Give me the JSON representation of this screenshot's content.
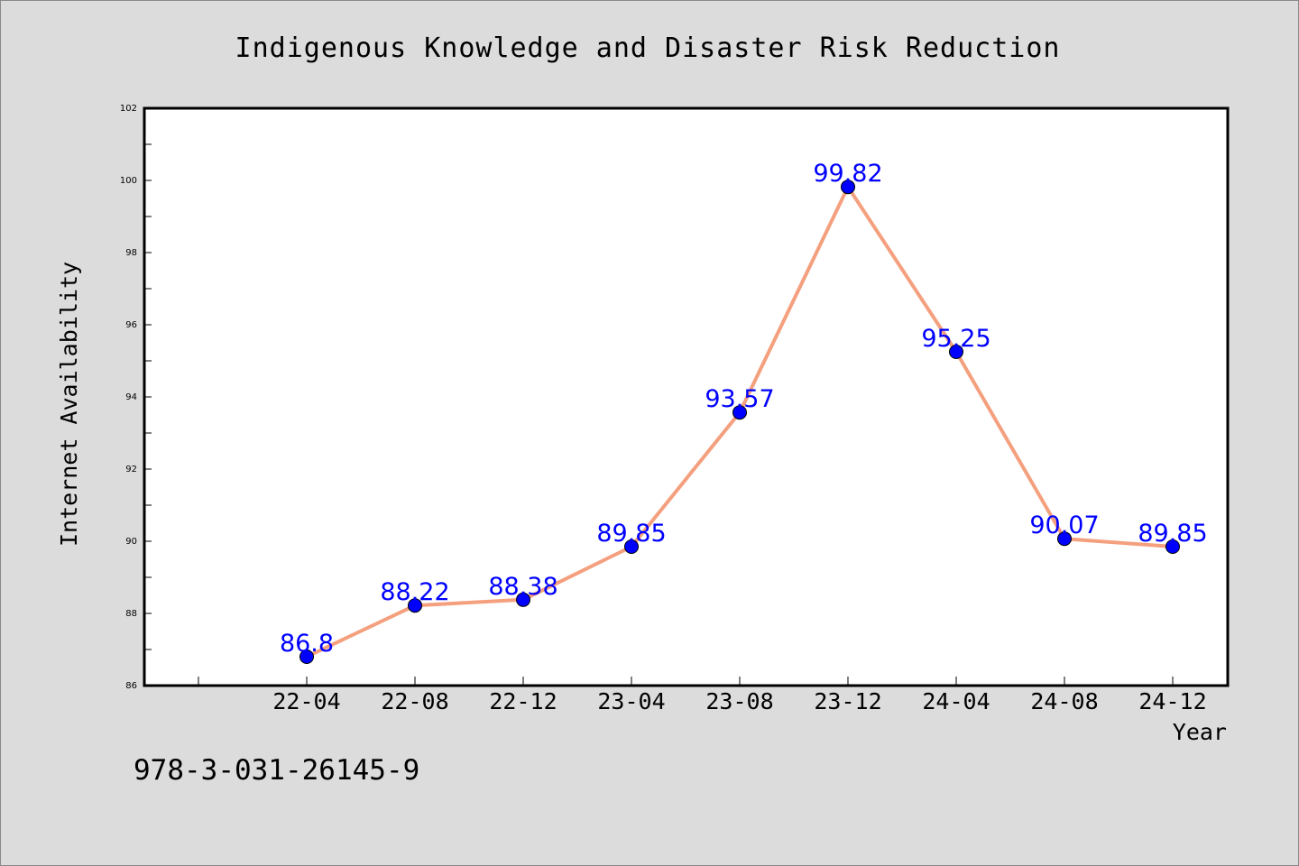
{
  "chart_data": {
    "type": "line",
    "title": "Indigenous Knowledge and Disaster Risk Reduction",
    "xlabel": "Year",
    "ylabel": "Internet Availability",
    "categories": [
      "22-04",
      "22-08",
      "22-12",
      "23-04",
      "23-08",
      "23-12",
      "24-04",
      "24-08",
      "24-12"
    ],
    "series": [
      {
        "values": [
          86.8,
          88.22,
          88.38,
          89.85,
          93.57,
          99.82,
          95.25,
          90.07,
          89.85
        ],
        "labels": [
          "86.8",
          "88.22",
          "88.38",
          "89.85",
          "93.57",
          "99.82",
          "95.25",
          "90.07",
          "89.85"
        ]
      }
    ],
    "ylim": [
      86,
      102
    ],
    "yticks": [
      "86",
      "88",
      "90",
      "92",
      "94",
      "96",
      "98",
      "100",
      "102"
    ],
    "grid": false,
    "line_color": "#f4a07e",
    "marker_color": "#0000ff",
    "label_color": "#0000ff"
  },
  "footer": {
    "isbn": "978-3-031-26145-9"
  }
}
